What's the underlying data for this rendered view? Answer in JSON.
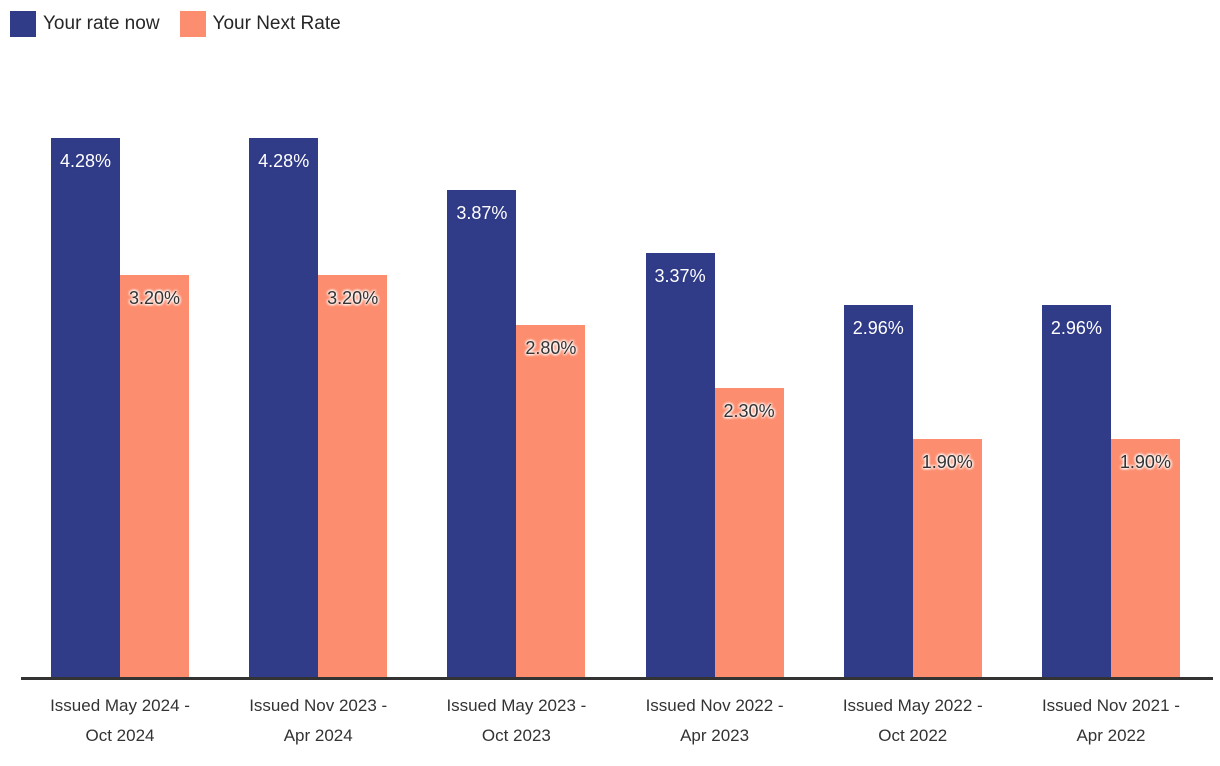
{
  "legend": {
    "items": [
      {
        "label": "Your rate now",
        "color": "#313c88"
      },
      {
        "label": "Your Next Rate",
        "color": "#fc8d6e"
      }
    ]
  },
  "chart_data": {
    "type": "bar",
    "title": "",
    "xlabel": "",
    "ylabel": "",
    "grid": false,
    "legend_position": "top-left",
    "ylim": [
      0,
      4.74
    ],
    "categories": [
      "Issued May 2024 - Oct 2024",
      "Issued Nov 2023 - Apr 2024",
      "Issued May 2023 - Oct 2023",
      "Issued Nov 2022 - Apr 2023",
      "Issued May 2022 - Oct 2022",
      "Issued Nov 2021 - Apr 2022"
    ],
    "category_lines": [
      [
        "Issued May 2024 -",
        "Oct 2024"
      ],
      [
        "Issued Nov 2023 -",
        "Apr 2024"
      ],
      [
        "Issued May 2023 -",
        "Oct 2023"
      ],
      [
        "Issued Nov 2022 -",
        "Apr 2023"
      ],
      [
        "Issued May 2022 -",
        "Oct 2022"
      ],
      [
        "Issued Nov 2021 -",
        "Apr 2022"
      ]
    ],
    "series": [
      {
        "name": "Your rate now",
        "color": "#313c88",
        "label_color": "#ffffff",
        "values": [
          4.28,
          4.28,
          3.87,
          3.37,
          2.96,
          2.96
        ],
        "labels": [
          "4.28%",
          "4.28%",
          "3.87%",
          "3.37%",
          "2.96%",
          "2.96%"
        ]
      },
      {
        "name": "Your Next Rate",
        "color": "#fc8d6e",
        "label_color": "#333333",
        "values": [
          3.2,
          3.2,
          2.8,
          2.3,
          1.9,
          1.9
        ],
        "labels": [
          "3.20%",
          "3.20%",
          "2.80%",
          "2.30%",
          "1.90%",
          "1.90%"
        ]
      }
    ]
  },
  "colors": {
    "axis_line": "#333333",
    "tick_label": "#333333",
    "legend_text": "#262626",
    "background": "#ffffff"
  }
}
